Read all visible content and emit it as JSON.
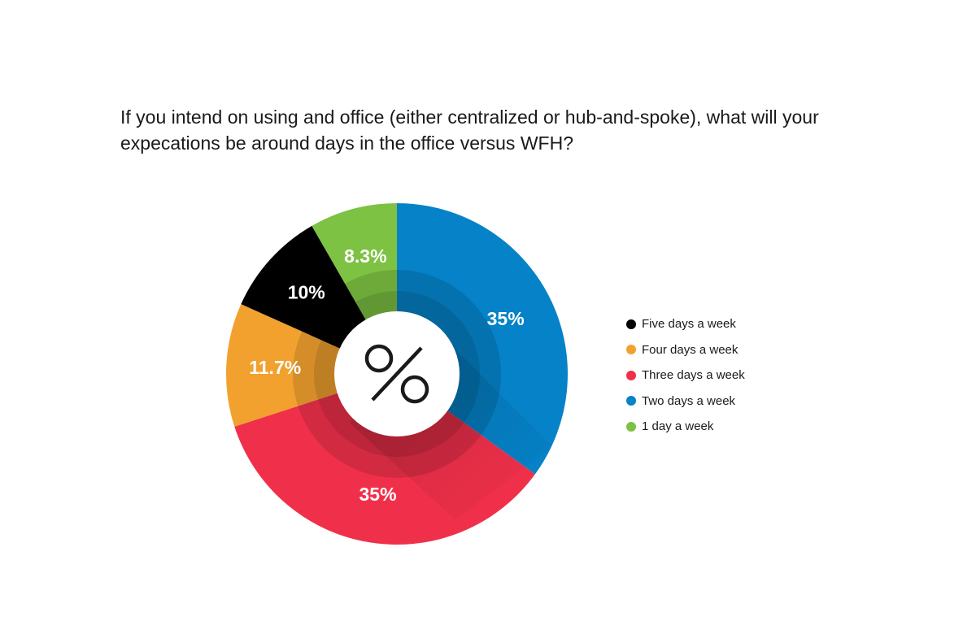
{
  "chart_data": {
    "type": "pie",
    "title": "If you intend on using and office (either centralized or hub-and-spoke), what will your expecations be around days in the office versus WFH?",
    "center_label": "%",
    "slices": [
      {
        "label": "Two days a week",
        "value": 35,
        "display": "35%",
        "color": "#0582c8"
      },
      {
        "label": "Three days a week",
        "value": 35,
        "display": "35%",
        "color": "#f0304a"
      },
      {
        "label": "Four days a week",
        "value": 11.7,
        "display": "11.7%",
        "color": "#f2a12e"
      },
      {
        "label": "Five days a week",
        "value": 10,
        "display": "10%",
        "color": "#000000"
      },
      {
        "label": "1 day a week",
        "value": 8.3,
        "display": "8.3%",
        "color": "#7dc242"
      }
    ],
    "legend": {
      "placement": "right",
      "items": [
        {
          "label": "Five days a week",
          "color": "#000000"
        },
        {
          "label": "Four days a week",
          "color": "#f2a12e"
        },
        {
          "label": "Three days a week",
          "color": "#f0304a"
        },
        {
          "label": "Two days a week",
          "color": "#0582c8"
        },
        {
          "label": "1 day a week",
          "color": "#7dc242"
        }
      ]
    }
  }
}
